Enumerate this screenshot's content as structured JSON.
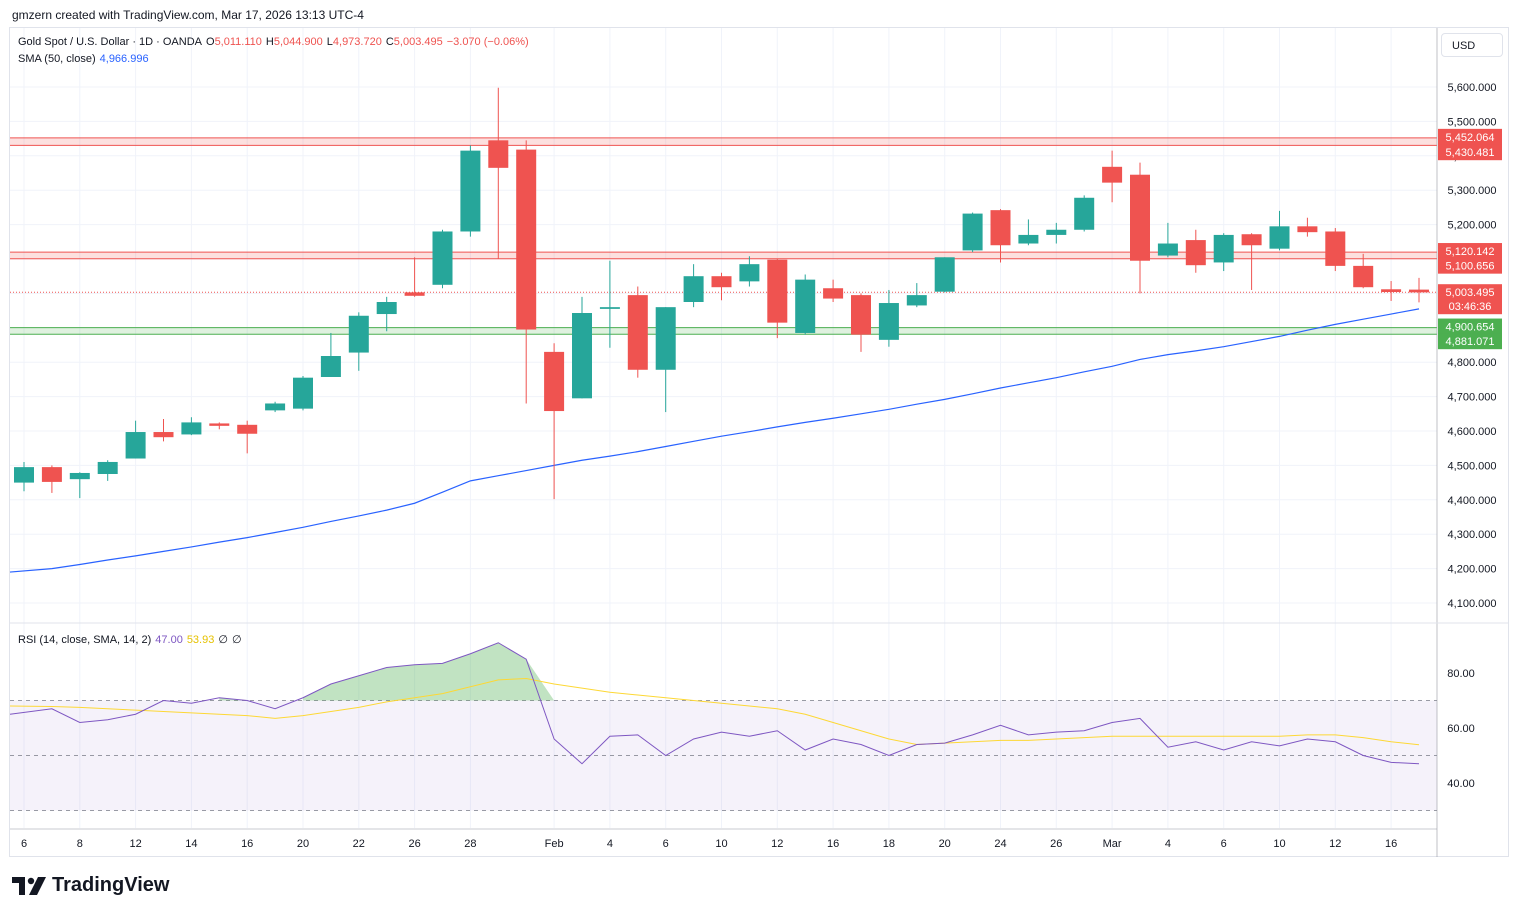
{
  "header": {
    "attribution": "gmzern created with TradingView.com, Mar 17, 2026 13:13 UTC-4"
  },
  "legend": {
    "symbol": "Gold Spot / U.S. Dollar · 1D · OANDA",
    "o_label": "O",
    "o_value": "5,011.110",
    "h_label": "H",
    "h_value": "5,044.900",
    "l_label": "L",
    "l_value": "4,973.720",
    "c_label": "C",
    "c_value": "5,003.495",
    "change": "−3.070 (−0.06%)",
    "sma_label": "SMA (50, close)",
    "sma_value": "4,966.996",
    "rsi_label": "RSI (14, close, SMA, 14, 2)",
    "rsi_value": "47.00",
    "rsi_sma_value": "53.93",
    "rsi_extra1": "∅",
    "rsi_extra2": "∅"
  },
  "currency": "USD",
  "footer": {
    "brand": "TradingView"
  },
  "colors": {
    "up": "#26a69a",
    "down": "#ef5350",
    "sma": "#2962ff",
    "rsi": "#7e57c2",
    "rsi_sma": "#fdd835",
    "resistance": "#ef5350",
    "support": "#4caf50"
  },
  "chart_data": [
    {
      "type": "candlestick",
      "title": "Gold Spot / U.S. Dollar · 1D · OANDA",
      "ylim": [
        4050,
        5700
      ],
      "y_ticks": [
        "4,100.000",
        "4,200.000",
        "4,300.000",
        "4,400.000",
        "4,500.000",
        "4,600.000",
        "4,700.000",
        "4,800.000",
        "4,900.000",
        "5,000.000",
        "5,100.000",
        "5,200.000",
        "5,300.000",
        "5,400.000",
        "5,500.000",
        "5,600.000"
      ],
      "x_ticks": [
        {
          "label": "6",
          "i": 0
        },
        {
          "label": "8",
          "i": 2
        },
        {
          "label": "12",
          "i": 4
        },
        {
          "label": "14",
          "i": 6
        },
        {
          "label": "16",
          "i": 8
        },
        {
          "label": "20",
          "i": 10
        },
        {
          "label": "22",
          "i": 12
        },
        {
          "label": "26",
          "i": 14
        },
        {
          "label": "28",
          "i": 16
        },
        {
          "label": "Feb",
          "i": 19
        },
        {
          "label": "4",
          "i": 21
        },
        {
          "label": "6",
          "i": 23
        },
        {
          "label": "10",
          "i": 25
        },
        {
          "label": "12",
          "i": 27
        },
        {
          "label": "16",
          "i": 29
        },
        {
          "label": "18",
          "i": 31
        },
        {
          "label": "20",
          "i": 33
        },
        {
          "label": "24",
          "i": 35
        },
        {
          "label": "26",
          "i": 37
        },
        {
          "label": "Mar",
          "i": 39
        },
        {
          "label": "4",
          "i": 41
        },
        {
          "label": "6",
          "i": 43
        },
        {
          "label": "10",
          "i": 45
        },
        {
          "label": "12",
          "i": 47
        },
        {
          "label": "16",
          "i": 49
        }
      ],
      "candles": [
        {
          "o": 4450,
          "h": 4510,
          "l": 4425,
          "c": 4495
        },
        {
          "o": 4495,
          "h": 4500,
          "l": 4420,
          "c": 4452
        },
        {
          "o": 4460,
          "h": 4480,
          "l": 4405,
          "c": 4478
        },
        {
          "o": 4475,
          "h": 4515,
          "l": 4455,
          "c": 4510
        },
        {
          "o": 4520,
          "h": 4630,
          "l": 4520,
          "c": 4597
        },
        {
          "o": 4597,
          "h": 4635,
          "l": 4570,
          "c": 4582
        },
        {
          "o": 4590,
          "h": 4640,
          "l": 4588,
          "c": 4625
        },
        {
          "o": 4622,
          "h": 4625,
          "l": 4605,
          "c": 4615
        },
        {
          "o": 4618,
          "h": 4630,
          "l": 4535,
          "c": 4592
        },
        {
          "o": 4660,
          "h": 4685,
          "l": 4655,
          "c": 4680
        },
        {
          "o": 4665,
          "h": 4760,
          "l": 4660,
          "c": 4755
        },
        {
          "o": 4757,
          "h": 4885,
          "l": 4757,
          "c": 4818
        },
        {
          "o": 4828,
          "h": 4945,
          "l": 4775,
          "c": 4935
        },
        {
          "o": 4940,
          "h": 4990,
          "l": 4890,
          "c": 4975
        },
        {
          "o": 5003,
          "h": 5105,
          "l": 4990,
          "c": 4993
        },
        {
          "o": 5025,
          "h": 5185,
          "l": 5015,
          "c": 5180
        },
        {
          "o": 5180,
          "h": 5430,
          "l": 5165,
          "c": 5415
        },
        {
          "o": 5445,
          "h": 5598,
          "l": 5100,
          "c": 5365
        },
        {
          "o": 5418,
          "h": 5445,
          "l": 4680,
          "c": 4895
        },
        {
          "o": 4830,
          "h": 4855,
          "l": 4402,
          "c": 4658
        },
        {
          "o": 4695,
          "h": 4990,
          "l": 4695,
          "c": 4943
        },
        {
          "o": 4955,
          "h": 5095,
          "l": 4842,
          "c": 4960
        },
        {
          "o": 4995,
          "h": 5020,
          "l": 4755,
          "c": 4778
        },
        {
          "o": 4778,
          "h": 4960,
          "l": 4655,
          "c": 4960
        },
        {
          "o": 4975,
          "h": 5085,
          "l": 4960,
          "c": 5050
        },
        {
          "o": 5050,
          "h": 5060,
          "l": 4980,
          "c": 5018
        },
        {
          "o": 5035,
          "h": 5108,
          "l": 5020,
          "c": 5085
        },
        {
          "o": 5098,
          "h": 5100,
          "l": 4870,
          "c": 4915
        },
        {
          "o": 4885,
          "h": 5055,
          "l": 4880,
          "c": 5040
        },
        {
          "o": 5015,
          "h": 5040,
          "l": 4975,
          "c": 4985
        },
        {
          "o": 4995,
          "h": 5000,
          "l": 4830,
          "c": 4880
        },
        {
          "o": 4865,
          "h": 5010,
          "l": 4845,
          "c": 4972
        },
        {
          "o": 4965,
          "h": 5030,
          "l": 4960,
          "c": 4995
        },
        {
          "o": 5005,
          "h": 5105,
          "l": 5003,
          "c": 5105
        },
        {
          "o": 5125,
          "h": 5235,
          "l": 5120,
          "c": 5232
        },
        {
          "o": 5242,
          "h": 5245,
          "l": 5090,
          "c": 5140
        },
        {
          "o": 5145,
          "h": 5215,
          "l": 5140,
          "c": 5170
        },
        {
          "o": 5170,
          "h": 5205,
          "l": 5145,
          "c": 5185
        },
        {
          "o": 5185,
          "h": 5285,
          "l": 5180,
          "c": 5278
        },
        {
          "o": 5368,
          "h": 5415,
          "l": 5265,
          "c": 5322
        },
        {
          "o": 5345,
          "h": 5380,
          "l": 5000,
          "c": 5095
        },
        {
          "o": 5110,
          "h": 5205,
          "l": 5105,
          "c": 5145
        },
        {
          "o": 5155,
          "h": 5185,
          "l": 5060,
          "c": 5082
        },
        {
          "o": 5090,
          "h": 5175,
          "l": 5065,
          "c": 5170
        },
        {
          "o": 5172,
          "h": 5175,
          "l": 5010,
          "c": 5140
        },
        {
          "o": 5130,
          "h": 5240,
          "l": 5125,
          "c": 5195
        },
        {
          "o": 5195,
          "h": 5220,
          "l": 5165,
          "c": 5178
        },
        {
          "o": 5180,
          "h": 5190,
          "l": 5065,
          "c": 5080
        },
        {
          "o": 5080,
          "h": 5115,
          "l": 5015,
          "c": 5018
        },
        {
          "o": 5012,
          "h": 5036,
          "l": 4978,
          "c": 5004
        },
        {
          "o": 5011,
          "h": 5045,
          "l": 4974,
          "c": 5003
        }
      ],
      "sma50": [
        4190,
        4200,
        4212,
        4225,
        4237,
        4250,
        4263,
        4277,
        4290,
        4305,
        4320,
        4337,
        4353,
        4370,
        4390,
        4422,
        4455,
        4470,
        4485,
        4500,
        4515,
        4527,
        4540,
        4555,
        4570,
        4585,
        4598,
        4612,
        4625,
        4637,
        4650,
        4663,
        4678,
        4692,
        4708,
        4725,
        4740,
        4755,
        4772,
        4788,
        4808,
        4822,
        4833,
        4845,
        4860,
        4875,
        4893,
        4910,
        4925,
        4940,
        4955
      ],
      "price_levels": [
        {
          "label": "5,452.064",
          "value": 5452.064,
          "color": "#ef5350"
        },
        {
          "label": "5,430.481",
          "value": 5430.481,
          "color": "#ef5350"
        },
        {
          "label": "5,120.142",
          "value": 5120.142,
          "color": "#ef5350"
        },
        {
          "label": "5,100.656",
          "value": 5100.656,
          "color": "#ef5350"
        },
        {
          "label": "4,900.654",
          "value": 4900.654,
          "color": "#4caf50"
        },
        {
          "label": "4,881.071",
          "value": 4881.071,
          "color": "#4caf50"
        }
      ],
      "last_price": {
        "label": "5,003.495",
        "value": 5003.495,
        "countdown": "03:46:36"
      }
    },
    {
      "type": "line",
      "title": "RSI (14, close, SMA, 14, 2)",
      "ylim": [
        25,
        95
      ],
      "y_ticks": [
        "40.00",
        "60.00",
        "80.00"
      ],
      "bands": [
        30,
        50,
        70
      ],
      "rsi": [
        65,
        67,
        62,
        63,
        65,
        70,
        69,
        71,
        70,
        67,
        71,
        76,
        79,
        82,
        83,
        83.5,
        87,
        91,
        85,
        56,
        47,
        57,
        57.5,
        50,
        56,
        58.5,
        57,
        59,
        52,
        56,
        54,
        50,
        54,
        54.5,
        57.5,
        61,
        57.5,
        58.5,
        59,
        62,
        63.5,
        53,
        55,
        52,
        55,
        53.5,
        56,
        55,
        50,
        47.5,
        47
      ],
      "rsi_sma": [
        68,
        67.8,
        67.5,
        67,
        66.5,
        66,
        65.5,
        65,
        64.5,
        63.5,
        64.5,
        66,
        67.5,
        69.5,
        71,
        72.5,
        75,
        77.5,
        78,
        76,
        74.5,
        73,
        72,
        71,
        70,
        69,
        68,
        67,
        65,
        62,
        59,
        56,
        54,
        54.5,
        55,
        55.5,
        55.5,
        56,
        56.5,
        57,
        57,
        57,
        57,
        57,
        57,
        57,
        57.5,
        57.5,
        56.5,
        55,
        53.93
      ]
    }
  ]
}
